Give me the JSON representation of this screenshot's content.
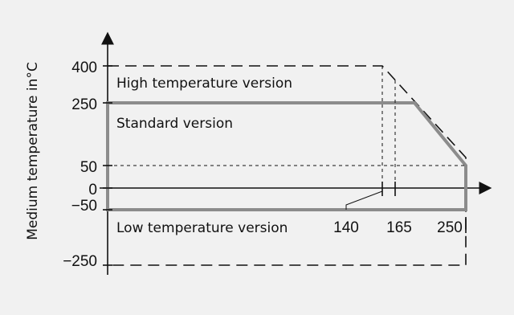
{
  "diagram": {
    "axis_label_y": "Medium temperature in°C",
    "regions": {
      "high": "High temperature version",
      "standard": "Standard version",
      "low": "Low temperature version"
    },
    "y_ticks": [
      "400",
      "250",
      "50",
      "0",
      "−50",
      "−250"
    ],
    "x_ticks": [
      "140",
      "165",
      "250"
    ],
    "colors": {
      "background": "#f1f1f1",
      "standard_boundary": "#8c8c8c",
      "lines": "#111111"
    }
  }
}
